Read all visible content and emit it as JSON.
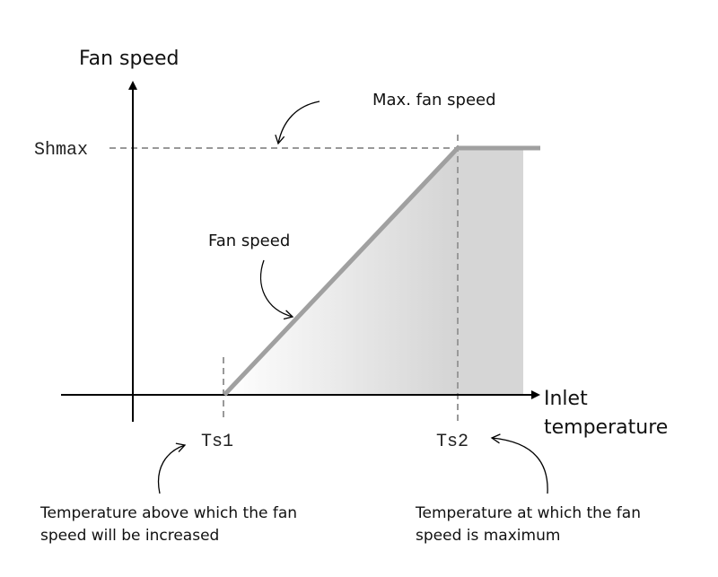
{
  "axes": {
    "y_label": "Fan speed",
    "x_label": [
      "Inlet",
      "temperature"
    ]
  },
  "levels": {
    "shmax": "Shmax",
    "ts1": "Ts1",
    "ts2": "Ts2"
  },
  "annotations": {
    "max_fan_speed": "Max. fan speed",
    "fan_speed": "Fan speed",
    "ts1_note": [
      "Temperature above which the fan",
      "speed will be increased"
    ],
    "ts2_note": [
      "Temperature at which the fan",
      "speed is maximum"
    ]
  }
}
